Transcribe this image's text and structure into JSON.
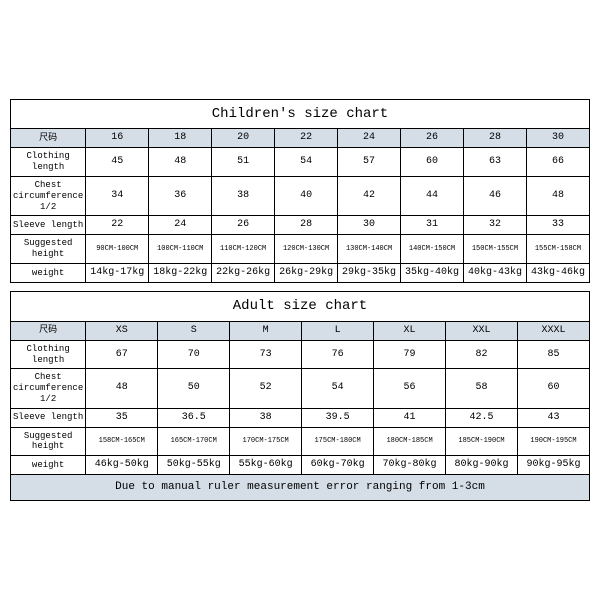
{
  "children": {
    "title": "Children's size chart",
    "header_label": "尺码",
    "sizes": [
      "16",
      "18",
      "20",
      "22",
      "24",
      "26",
      "28",
      "30"
    ],
    "rows": [
      {
        "label": "Clothing length",
        "values": [
          "45",
          "48",
          "51",
          "54",
          "57",
          "60",
          "63",
          "66"
        ]
      },
      {
        "label": "Chest circumference 1/2",
        "values": [
          "34",
          "36",
          "38",
          "40",
          "42",
          "44",
          "46",
          "48"
        ]
      },
      {
        "label": "Sleeve length",
        "values": [
          "22",
          "24",
          "26",
          "28",
          "30",
          "31",
          "32",
          "33"
        ]
      },
      {
        "label": "Suggested height",
        "values": [
          "90CM-100CM",
          "100CM-110CM",
          "110CM-120CM",
          "120CM-130CM",
          "130CM-140CM",
          "140CM-150CM",
          "150CM-155CM",
          "155CM-158CM"
        ],
        "small": true
      },
      {
        "label": "weight",
        "values": [
          "14kg-17kg",
          "18kg-22kg",
          "22kg-26kg",
          "26kg-29kg",
          "29kg-35kg",
          "35kg-40kg",
          "40kg-43kg",
          "43kg-46kg"
        ]
      }
    ]
  },
  "adult": {
    "title": "Adult size chart",
    "header_label": "尺码",
    "sizes": [
      "XS",
      "S",
      "M",
      "L",
      "XL",
      "XXL",
      "XXXL"
    ],
    "rows": [
      {
        "label": "Clothing length",
        "values": [
          "67",
          "70",
          "73",
          "76",
          "79",
          "82",
          "85"
        ]
      },
      {
        "label": "Chest circumference 1/2",
        "values": [
          "48",
          "50",
          "52",
          "54",
          "56",
          "58",
          "60"
        ]
      },
      {
        "label": "Sleeve length",
        "values": [
          "35",
          "36.5",
          "38",
          "39.5",
          "41",
          "42.5",
          "43"
        ]
      },
      {
        "label": "Suggested height",
        "values": [
          "158CM-165CM",
          "165CM-170CM",
          "170CM-175CM",
          "175CM-180CM",
          "180CM-185CM",
          "185CM-190CM",
          "190CM-195CM"
        ],
        "small": true
      },
      {
        "label": "weight",
        "values": [
          "46kg-50kg",
          "50kg-55kg",
          "55kg-60kg",
          "60kg-70kg",
          "70kg-80kg",
          "80kg-90kg",
          "90kg-95kg"
        ]
      }
    ],
    "footer": "Due to manual ruler measurement error ranging from 1-3cm"
  },
  "style": {
    "header_bg": "#d5dde6",
    "border_color": "#000000",
    "background": "#ffffff",
    "title_fontsize": 14,
    "cell_fontsize": 10,
    "small_fontsize": 7,
    "font_family": "Courier New, monospace"
  }
}
